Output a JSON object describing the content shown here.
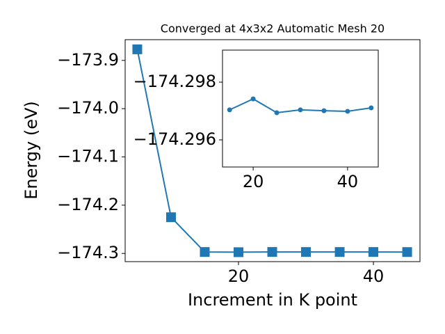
{
  "chart_data": [
    {
      "type": "line",
      "title": "Converged at 4x3x2 Automatic Mesh 20",
      "x_label": "Increment in K point",
      "y_label": "Energy (eV)",
      "x": [
        5,
        10,
        15,
        20,
        25,
        30,
        35,
        40,
        45
      ],
      "series": [
        {
          "color": "#1f77b4",
          "marker": "square",
          "values": [
            -173.877,
            -174.225,
            -174.29704,
            -174.29742,
            -174.29694,
            -174.29704,
            -174.29701,
            -174.29699,
            -174.29711
          ]
        }
      ],
      "xlim": [
        3.2,
        46.9
      ],
      "ylim": [
        -174.317,
        -173.857
      ],
      "xticks": [
        20,
        40
      ],
      "yticks": [
        {
          "value": -173.9,
          "label": "−173.9"
        },
        {
          "value": -174.0,
          "label": "−174.0"
        },
        {
          "value": -174.1,
          "label": "−174.1"
        },
        {
          "value": -174.2,
          "label": "−174.2"
        },
        {
          "value": -174.3,
          "label": "−174.3"
        }
      ]
    },
    {
      "type": "line",
      "x": [
        15,
        20,
        25,
        30,
        35,
        40,
        45
      ],
      "series": [
        {
          "color": "#1f77b4",
          "marker": "circle",
          "values": [
            -174.29704,
            -174.29742,
            -174.29694,
            -174.29704,
            -174.29701,
            -174.29699,
            -174.29711
          ]
        }
      ],
      "xlim": [
        13.5,
        46.5
      ],
      "ylim": [
        -174.29506,
        -174.29911
      ],
      "xticks": [
        20,
        40
      ],
      "yticks": [
        {
          "value": -174.298,
          "label": "−174.298"
        },
        {
          "value": -174.296,
          "label": "−174.296"
        }
      ]
    }
  ]
}
